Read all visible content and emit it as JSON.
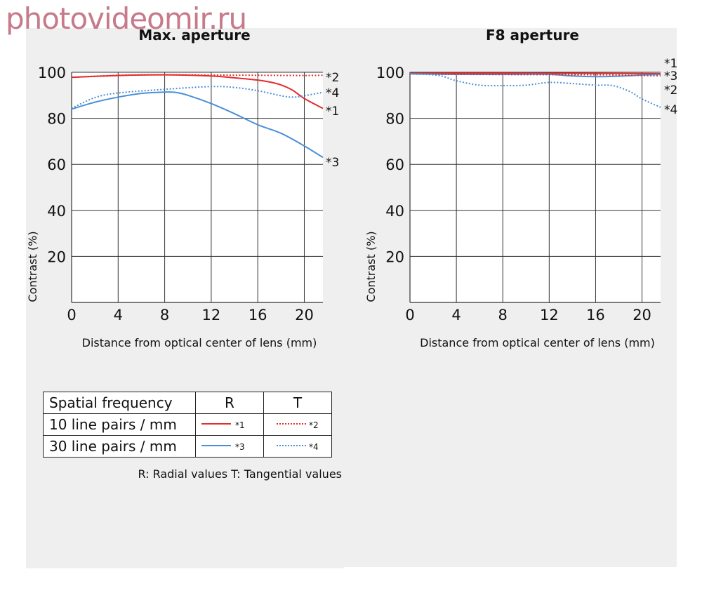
{
  "watermark": "photovideomir.ru",
  "colors": {
    "red": "#e52b2b",
    "blue": "#4a90d6",
    "grid": "#333333",
    "bg": "#efefef"
  },
  "chart_data": [
    {
      "type": "line",
      "title": "Max. aperture",
      "xlabel": "Distance from optical center of lens (mm)",
      "ylabel": "Contrast (%)",
      "xlim": [
        0,
        21.6
      ],
      "ylim": [
        0,
        100
      ],
      "xticks": [
        0,
        4,
        8,
        12,
        16,
        20
      ],
      "yticks": [
        20,
        40,
        60,
        80,
        100
      ],
      "grid": true,
      "series": [
        {
          "name": "*1",
          "color": "red",
          "style": "solid",
          "x": [
            0,
            4,
            8,
            12,
            14,
            16,
            17,
            18,
            19,
            20,
            21.6
          ],
          "y": [
            97.8,
            98.6,
            98.9,
            98.4,
            97.6,
            96.6,
            95.8,
            94.5,
            92.2,
            88.6,
            84.3
          ]
        },
        {
          "name": "*2",
          "color": "red",
          "style": "dotted",
          "x": [
            0,
            4,
            8,
            12,
            16,
            20,
            21.6
          ],
          "y": [
            97.8,
            98.7,
            98.9,
            98.8,
            98.7,
            98.6,
            98.7
          ]
        },
        {
          "name": "*3",
          "color": "blue",
          "style": "solid",
          "x": [
            0,
            2,
            4,
            6,
            8,
            9,
            10,
            12,
            14,
            16,
            18,
            20,
            21.6
          ],
          "y": [
            84,
            87,
            89.2,
            90.8,
            91.4,
            91.2,
            90,
            86.4,
            82,
            77.2,
            73.5,
            68,
            63
          ]
        },
        {
          "name": "*4",
          "color": "blue",
          "style": "dotted",
          "x": [
            0,
            2,
            4,
            8,
            12,
            14,
            16,
            18,
            19,
            20,
            21.6
          ],
          "y": [
            84.3,
            89,
            91,
            92.6,
            93.8,
            93.4,
            92,
            89.8,
            89.2,
            89.8,
            91.3
          ]
        }
      ]
    },
    {
      "type": "line",
      "title": "F8 aperture",
      "xlabel": "Distance from optical center of lens (mm)",
      "ylabel": "Contrast (%)",
      "xlim": [
        0,
        21.6
      ],
      "ylim": [
        0,
        100
      ],
      "xticks": [
        0,
        4,
        8,
        12,
        16,
        20
      ],
      "yticks": [
        20,
        40,
        60,
        80,
        100
      ],
      "grid": true,
      "series": [
        {
          "name": "*1",
          "color": "red",
          "style": "solid",
          "x": [
            0,
            8,
            16,
            21.6
          ],
          "y": [
            99.6,
            99.6,
            99.5,
            99.4
          ]
        },
        {
          "name": "*3",
          "color": "blue",
          "style": "solid",
          "x": [
            0,
            4,
            8,
            12,
            14,
            16,
            18,
            20,
            21.6
          ],
          "y": [
            99.3,
            99.1,
            99.1,
            99.1,
            98.4,
            98.1,
            98.3,
            98.8,
            99.1
          ]
        },
        {
          "name": "*2",
          "color": "red",
          "style": "dotted",
          "x": [
            0,
            8,
            16,
            20,
            21.6
          ],
          "y": [
            99.2,
            99.0,
            98.9,
            98.6,
            98.5
          ]
        },
        {
          "name": "*4",
          "color": "blue",
          "style": "dotted",
          "x": [
            0,
            2,
            3,
            4,
            6,
            8,
            10,
            12,
            14,
            16,
            17.5,
            19,
            20,
            21.6
          ],
          "y": [
            99.3,
            98.9,
            98,
            96.3,
            94.4,
            94.2,
            94.4,
            95.6,
            95.1,
            94.4,
            94.2,
            91.5,
            88.4,
            84.8
          ]
        }
      ]
    }
  ],
  "legend": {
    "header": {
      "label": "Spatial frequency",
      "r": "R",
      "t": "T"
    },
    "rows": [
      {
        "label": "10 line pairs / mm",
        "r_mark": "*1",
        "t_mark": "*2",
        "color": "red"
      },
      {
        "label": "30 line pairs / mm",
        "r_mark": "*3",
        "t_mark": "*4",
        "color": "blue"
      }
    ],
    "note": "R: Radial values  T: Tangential values"
  }
}
